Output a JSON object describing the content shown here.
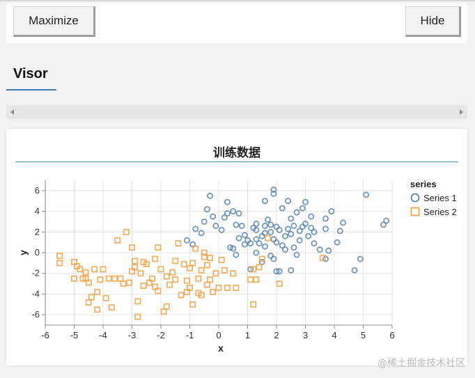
{
  "toolbar": {
    "maximize_label": "Maximize",
    "hide_label": "Hide"
  },
  "tab": {
    "label": "Visor"
  },
  "panel": {
    "title": "训练数据"
  },
  "watermark": "@稀土掘金技术社区",
  "colors": {
    "series1": "#5a84ad",
    "series2": "#f0a347",
    "accent": "#3a8fb8"
  },
  "chart_data": {
    "type": "scatter",
    "title": "训练数据",
    "xlabel": "x",
    "ylabel": "y",
    "xlim": [
      -6,
      6
    ],
    "ylim": [
      -7,
      7
    ],
    "xticks": [
      -6,
      -5,
      -4,
      -3,
      -2,
      -1,
      0,
      1,
      2,
      3,
      4,
      5,
      6
    ],
    "yticks": [
      6,
      4,
      2,
      0,
      -2,
      -4,
      -6
    ],
    "grid": true,
    "legend_title": "series",
    "legend_position": "right",
    "series": [
      {
        "name": "Series 1",
        "marker": "circle",
        "points": [
          [
            -1.1,
            1.2
          ],
          [
            -0.8,
            2.3
          ],
          [
            -0.6,
            1.9
          ],
          [
            -0.5,
            3.0
          ],
          [
            -0.4,
            4.2
          ],
          [
            -0.3,
            5.5
          ],
          [
            -0.2,
            3.5
          ],
          [
            -0.1,
            2.6
          ],
          [
            0.1,
            2.2
          ],
          [
            0.2,
            3.4
          ],
          [
            0.3,
            4.9
          ],
          [
            0.3,
            3.8
          ],
          [
            0.5,
            4.0
          ],
          [
            0.5,
            0.4
          ],
          [
            0.6,
            2.7
          ],
          [
            0.6,
            -0.2
          ],
          [
            0.7,
            3.8
          ],
          [
            0.7,
            1.4
          ],
          [
            0.8,
            2.6
          ],
          [
            0.9,
            0.8
          ],
          [
            1.0,
            1.2
          ],
          [
            1.1,
            0.9
          ],
          [
            1.3,
            2.8
          ],
          [
            1.3,
            1.3
          ],
          [
            1.3,
            2.2
          ],
          [
            1.4,
            0.9
          ],
          [
            1.5,
            1.6
          ],
          [
            1.6,
            5.0
          ],
          [
            1.6,
            2.6
          ],
          [
            1.6,
            0.6
          ],
          [
            1.7,
            3.2
          ],
          [
            1.8,
            2.0
          ],
          [
            1.8,
            2.7
          ],
          [
            1.9,
            5.7
          ],
          [
            1.9,
            6.1
          ],
          [
            1.9,
            1.3
          ],
          [
            2.0,
            2.5
          ],
          [
            2.0,
            1.0
          ],
          [
            2.1,
            2.2
          ],
          [
            2.2,
            4.3
          ],
          [
            2.2,
            0.7
          ],
          [
            2.3,
            1.6
          ],
          [
            2.4,
            5.0
          ],
          [
            2.4,
            2.3
          ],
          [
            2.5,
            3.3
          ],
          [
            2.5,
            1.8
          ],
          [
            2.6,
            2.6
          ],
          [
            2.6,
            0.5
          ],
          [
            2.7,
            3.9
          ],
          [
            2.8,
            2.1
          ],
          [
            2.8,
            1.2
          ],
          [
            2.9,
            2.5
          ],
          [
            3.0,
            4.9
          ],
          [
            3.0,
            2.8
          ],
          [
            3.1,
            1.6
          ],
          [
            3.2,
            3.5
          ],
          [
            3.2,
            2.4
          ],
          [
            3.3,
            0.9
          ],
          [
            3.5,
            0.3
          ],
          [
            3.7,
            3.3
          ],
          [
            3.7,
            2.3
          ],
          [
            3.7,
            -0.6
          ],
          [
            3.8,
            0.2
          ],
          [
            3.9,
            4.0
          ],
          [
            4.1,
            1.0
          ],
          [
            4.2,
            2.1
          ],
          [
            4.3,
            2.9
          ],
          [
            4.7,
            -1.7
          ],
          [
            4.9,
            -0.6
          ],
          [
            5.1,
            5.6
          ],
          [
            5.7,
            2.7
          ],
          [
            5.8,
            3.1
          ],
          [
            1.8,
            -0.3
          ],
          [
            2.0,
            -1.8
          ],
          [
            1.3,
            0.0
          ],
          [
            1.1,
            -1.6
          ],
          [
            0.4,
            0.5
          ],
          [
            2.7,
            -0.2
          ],
          [
            1.5,
            -0.9
          ],
          [
            2.3,
            0.3
          ],
          [
            1.2,
            2.4
          ],
          [
            2.9,
            4.3
          ],
          [
            1.6,
            1.9
          ],
          [
            2.5,
            -1.7
          ],
          [
            3.3,
            2.0
          ],
          [
            0.9,
            1.7
          ],
          [
            1.9,
            -0.6
          ],
          [
            2.1,
            -1.8
          ],
          [
            -0.9,
            0.8
          ]
        ]
      },
      {
        "name": "Series 2",
        "marker": "square",
        "points": [
          [
            -5.5,
            -0.3
          ],
          [
            -5.5,
            -1.0
          ],
          [
            -5.0,
            -0.9
          ],
          [
            -5.0,
            -2.5
          ],
          [
            -4.8,
            -1.6
          ],
          [
            -4.7,
            -2.5
          ],
          [
            -4.6,
            -1.9
          ],
          [
            -4.5,
            -2.9
          ],
          [
            -4.4,
            -4.3
          ],
          [
            -4.3,
            -1.6
          ],
          [
            -4.2,
            -3.8
          ],
          [
            -4.2,
            -5.5
          ],
          [
            -4.1,
            -2.6
          ],
          [
            -4.0,
            -1.6
          ],
          [
            -3.9,
            -4.4
          ],
          [
            -3.7,
            -5.3
          ],
          [
            -3.6,
            -2.5
          ],
          [
            -3.5,
            1.2
          ],
          [
            -3.4,
            -2.5
          ],
          [
            -3.2,
            2.0
          ],
          [
            -3.1,
            -2.9
          ],
          [
            -3.0,
            -1.8
          ],
          [
            -3.0,
            0.5
          ],
          [
            -2.9,
            -0.8
          ],
          [
            -2.8,
            -6.2
          ],
          [
            -2.8,
            -4.7
          ],
          [
            -2.7,
            -2.0
          ],
          [
            -2.6,
            -3.2
          ],
          [
            -2.5,
            -1.1
          ],
          [
            -2.4,
            -2.9
          ],
          [
            -2.3,
            -2.5
          ],
          [
            -2.2,
            -0.6
          ],
          [
            -2.1,
            0.5
          ],
          [
            -2.1,
            -3.7
          ],
          [
            -2.0,
            -1.6
          ],
          [
            -1.9,
            -5.7
          ],
          [
            -1.8,
            -5.2
          ],
          [
            -1.8,
            -2.3
          ],
          [
            -1.7,
            -3.1
          ],
          [
            -1.6,
            -1.9
          ],
          [
            -1.5,
            -0.8
          ],
          [
            -1.4,
            0.9
          ],
          [
            -1.3,
            -4.1
          ],
          [
            -1.2,
            -1.1
          ],
          [
            -1.1,
            -3.8
          ],
          [
            -1.1,
            -2.7
          ],
          [
            -1.0,
            -3.4
          ],
          [
            -0.9,
            -1.0
          ],
          [
            -0.9,
            -5.0
          ],
          [
            -0.8,
            0.4
          ],
          [
            -0.7,
            -2.5
          ],
          [
            -0.7,
            -3.9
          ],
          [
            -0.6,
            -1.7
          ],
          [
            -0.6,
            -4.1
          ],
          [
            -0.5,
            0.0
          ],
          [
            -0.4,
            -3.1
          ],
          [
            -0.3,
            -2.6
          ],
          [
            -0.3,
            -0.5
          ],
          [
            -0.2,
            -3.8
          ],
          [
            -0.1,
            -2.0
          ],
          [
            0.0,
            -3.4
          ],
          [
            0.1,
            -0.7
          ],
          [
            0.2,
            -1.7
          ],
          [
            0.3,
            -3.4
          ],
          [
            0.5,
            -2.0
          ],
          [
            0.6,
            -3.4
          ],
          [
            1.1,
            -2.6
          ],
          [
            1.2,
            -1.6
          ],
          [
            1.3,
            -2.6
          ],
          [
            1.4,
            -1.4
          ],
          [
            1.5,
            -0.6
          ],
          [
            1.7,
            1.4
          ],
          [
            2.1,
            -3.0
          ],
          [
            3.6,
            -0.5
          ],
          [
            -4.9,
            -1.3
          ],
          [
            -3.3,
            -3.0
          ],
          [
            -2.6,
            -0.9
          ],
          [
            -1.5,
            -2.6
          ],
          [
            -0.5,
            -0.4
          ],
          [
            1.2,
            -5.0
          ],
          [
            -2.9,
            -1.4
          ],
          [
            -4.5,
            -4.8
          ],
          [
            -3.8,
            -2.5
          ],
          [
            -2.2,
            -3.3
          ],
          [
            -1.0,
            -1.5
          ],
          [
            -0.4,
            -1.2
          ],
          [
            -4.6,
            -2.5
          ]
        ]
      }
    ]
  }
}
